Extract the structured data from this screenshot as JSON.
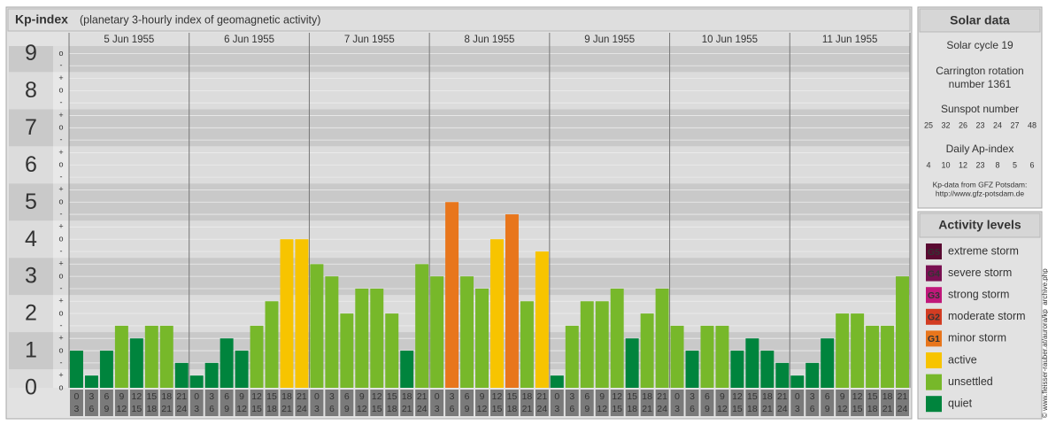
{
  "chart_data": {
    "type": "bar",
    "title": "Kp-index",
    "subtitle": "(planetary 3-hourly index of geomagnetic activity)",
    "ylim": [
      0,
      9.2
    ],
    "yticks": [
      0,
      1,
      2,
      3,
      4,
      5,
      6,
      7,
      8,
      9
    ],
    "minor_yticks": [
      {
        "value": 0,
        "label": "o"
      },
      {
        "value": 0.33,
        "label": "+"
      },
      {
        "value": 0.67,
        "label": "-"
      },
      {
        "value": 1,
        "label": "o"
      },
      {
        "value": 1.33,
        "label": "+"
      },
      {
        "value": 1.67,
        "label": "-"
      },
      {
        "value": 2,
        "label": "o"
      },
      {
        "value": 2.33,
        "label": "+"
      },
      {
        "value": 2.67,
        "label": "-"
      },
      {
        "value": 3,
        "label": "o"
      },
      {
        "value": 3.33,
        "label": "+"
      },
      {
        "value": 3.67,
        "label": "-"
      },
      {
        "value": 4,
        "label": "o"
      },
      {
        "value": 4.33,
        "label": "+"
      },
      {
        "value": 4.67,
        "label": "-"
      },
      {
        "value": 5,
        "label": "o"
      },
      {
        "value": 5.33,
        "label": "+"
      },
      {
        "value": 5.67,
        "label": "-"
      },
      {
        "value": 6,
        "label": "o"
      },
      {
        "value": 6.33,
        "label": "+"
      },
      {
        "value": 6.67,
        "label": "-"
      },
      {
        "value": 7,
        "label": "o"
      },
      {
        "value": 7.33,
        "label": "+"
      },
      {
        "value": 7.67,
        "label": "-"
      },
      {
        "value": 8,
        "label": "o"
      },
      {
        "value": 8.33,
        "label": "+"
      },
      {
        "value": 8.67,
        "label": "-"
      },
      {
        "value": 9,
        "label": "o"
      }
    ],
    "intervals": [
      [
        0,
        3
      ],
      [
        3,
        6
      ],
      [
        6,
        9
      ],
      [
        9,
        12
      ],
      [
        12,
        15
      ],
      [
        15,
        18
      ],
      [
        18,
        21
      ],
      [
        21,
        24
      ]
    ],
    "days": [
      {
        "date": "5 Jun 1955",
        "values": [
          1,
          0.33,
          1,
          1.67,
          1.33,
          1.67,
          1.67,
          0.67
        ],
        "colors": [
          "#00843d",
          "#00843d",
          "#00843d",
          "#77b82a",
          "#00843d",
          "#77b82a",
          "#77b82a",
          "#00843d"
        ]
      },
      {
        "date": "6 Jun 1955",
        "values": [
          0.33,
          0.67,
          1.33,
          1,
          1.67,
          2.33,
          4,
          4
        ],
        "colors": [
          "#00843d",
          "#00843d",
          "#00843d",
          "#00843d",
          "#77b82a",
          "#77b82a",
          "#f7c400",
          "#f7c400"
        ]
      },
      {
        "date": "7 Jun 1955",
        "values": [
          3.33,
          3,
          2,
          2.67,
          2.67,
          2,
          1,
          3.33
        ],
        "colors": [
          "#77b82a",
          "#77b82a",
          "#77b82a",
          "#77b82a",
          "#77b82a",
          "#77b82a",
          "#00843d",
          "#77b82a"
        ]
      },
      {
        "date": "8 Jun 1955",
        "values": [
          3,
          5,
          3,
          2.67,
          4,
          4.67,
          2.33,
          3.67
        ],
        "colors": [
          "#77b82a",
          "#e8761c",
          "#77b82a",
          "#77b82a",
          "#f7c400",
          "#e8761c",
          "#77b82a",
          "#f7c400"
        ]
      },
      {
        "date": "9 Jun 1955",
        "values": [
          0.33,
          1.67,
          2.33,
          2.33,
          2.67,
          1.33,
          2,
          2.67
        ],
        "colors": [
          "#00843d",
          "#77b82a",
          "#77b82a",
          "#77b82a",
          "#77b82a",
          "#00843d",
          "#77b82a",
          "#77b82a"
        ]
      },
      {
        "date": "10 Jun 1955",
        "values": [
          1.67,
          1,
          1.67,
          1.67,
          1,
          1.33,
          1,
          0.67
        ],
        "colors": [
          "#77b82a",
          "#00843d",
          "#77b82a",
          "#77b82a",
          "#00843d",
          "#00843d",
          "#00843d",
          "#00843d"
        ]
      },
      {
        "date": "11 Jun 1955",
        "values": [
          0.33,
          0.67,
          1.33,
          2,
          2,
          1.67,
          1.67,
          3
        ],
        "colors": [
          "#00843d",
          "#00843d",
          "#00843d",
          "#77b82a",
          "#77b82a",
          "#77b82a",
          "#77b82a",
          "#77b82a"
        ]
      }
    ]
  },
  "solar_data": {
    "title": "Solar data",
    "cycle": "Solar cycle 19",
    "carrington": [
      "Carrington rotation",
      "number 1361"
    ],
    "sunspot_label": "Sunspot number",
    "sunspot": [
      25,
      32,
      26,
      23,
      24,
      27,
      48
    ],
    "ap_label": "Daily Ap-index",
    "ap": [
      4,
      10,
      12,
      23,
      8,
      5,
      6
    ],
    "source": [
      "Kp-data from GFZ Potsdam:",
      "http://www.gfz-potsdam.de"
    ]
  },
  "activity_levels": {
    "title": "Activity levels",
    "levels": [
      {
        "code": "G5",
        "name": "extreme storm",
        "color": "#5a0a32"
      },
      {
        "code": "G4",
        "name": "severe storm",
        "color": "#7a1052"
      },
      {
        "code": "G3",
        "name": "strong storm",
        "color": "#c0187a"
      },
      {
        "code": "G2",
        "name": "moderate storm",
        "color": "#d23c22"
      },
      {
        "code": "G1",
        "name": "minor storm",
        "color": "#e8761c"
      },
      {
        "name": "active",
        "color": "#f7c400"
      },
      {
        "name": "unsettled",
        "color": "#77b82a"
      },
      {
        "name": "quiet",
        "color": "#00843d"
      }
    ]
  },
  "watermark": "© www.fleisser-rauber.at/aurora/kp_archive.php"
}
